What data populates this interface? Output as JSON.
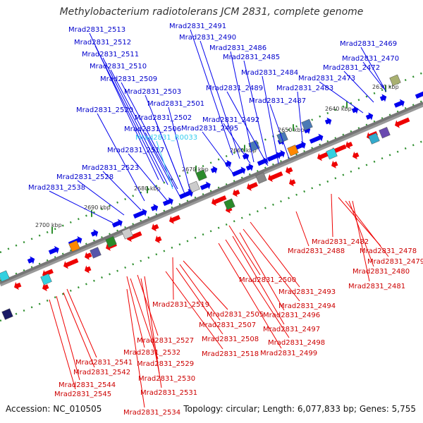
{
  "title": "Methylobacterium radiotolerans JCM 2831, complete genome",
  "footer": {
    "accession": "Accession: NC_010505",
    "topology": "Topology: circular; Length: 6,077,833 bp; Genes: 5,755"
  },
  "colors": {
    "forward_gene": "#0000ee",
    "reverse_gene": "#ee0000",
    "rna_gene": "#33ccee",
    "backbone": "#777777",
    "tick": "#2f8f2f",
    "label_forward": "#0000cc",
    "label_reverse": "#cc0000"
  },
  "scale_ticks": [
    "2630 kbp",
    "2640 kbp",
    "2650 kbp",
    "2660 kbp",
    "2670 kbp",
    "2680 kbp",
    "2690 kbp",
    "2700 kbp"
  ],
  "forward_labels": [
    "Mrad2831_2513",
    "Mrad2831_2512",
    "Mrad2831_2511",
    "Mrad2831_2510",
    "Mrad2831_2509",
    "Mrad2831_2503",
    "Mrad2831_2501",
    "Mrad2831_2520",
    "Mrad2831_2502",
    "Mrad2831_2506",
    "Mrad2831_R0033",
    "Mrad2831_2517",
    "Mrad2831_2523",
    "Mrad2831_2528",
    "Mrad2831_2538",
    "Mrad2831_2491",
    "Mrad2831_2490",
    "Mrad2831_2486",
    "Mrad2831_2485",
    "Mrad2831_2484",
    "Mrad2831_2489",
    "Mrad2831_2487",
    "Mrad2831_2492",
    "Mrad2831_2495",
    "Mrad2831_2483",
    "Mrad2831_2473",
    "Mrad2831_2472",
    "Mrad2831_2470",
    "Mrad2831_2469"
  ],
  "reverse_labels": [
    "Mrad2831_2482",
    "Mrad2831_2488",
    "Mrad2831_2478",
    "Mrad2831_2479",
    "Mrad2831_2480",
    "Mrad2831_2481",
    "Mrad2831_2500",
    "Mrad2831_2493",
    "Mrad2831_2494",
    "Mrad2831_2496",
    "Mrad2831_2497",
    "Mrad2831_2498",
    "Mrad2831_2499",
    "Mrad2831_2519",
    "Mrad2831_2505",
    "Mrad2831_2507",
    "Mrad2831_2508",
    "Mrad2831_2518",
    "Mrad2831_2527",
    "Mrad2831_2532",
    "Mrad2831_2529",
    "Mrad2831_2541",
    "Mrad2831_2542",
    "Mrad2831_2530",
    "Mrad2831_2544",
    "Mrad2831_2531",
    "Mrad2831_2545",
    "Mrad2831_2534"
  ]
}
